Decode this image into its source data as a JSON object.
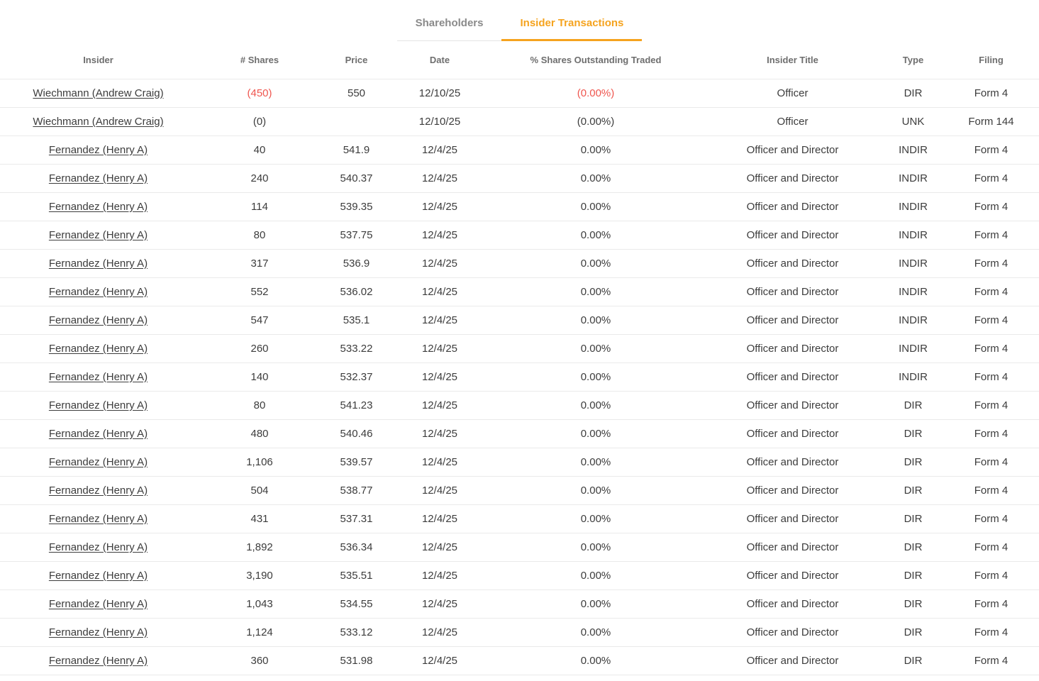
{
  "colors": {
    "accent_orange": "#F5A31E",
    "negative_red": "#EF564F"
  },
  "tabs": {
    "items": [
      {
        "label": "Shareholders",
        "active": false
      },
      {
        "label": "Insider Transactions",
        "active": true
      }
    ]
  },
  "table": {
    "columns": [
      "Insider",
      "# Shares",
      "Price",
      "Date",
      "% Shares Outstanding Traded",
      "Insider Title",
      "Type",
      "Filing"
    ],
    "rows": [
      {
        "insider": "Wiechmann (Andrew Craig)",
        "shares": "(450)",
        "price": "550",
        "date": "12/10/25",
        "pct": "(0.00%)",
        "title": "Officer",
        "type": "DIR",
        "filing": "Form 4",
        "red": true
      },
      {
        "insider": "Wiechmann (Andrew Craig)",
        "shares": "(0)",
        "price": "",
        "date": "12/10/25",
        "pct": "(0.00%)",
        "title": "Officer",
        "type": "UNK",
        "filing": "Form 144"
      },
      {
        "insider": "Fernandez (Henry A)",
        "shares": "40",
        "price": "541.9",
        "date": "12/4/25",
        "pct": "0.00%",
        "title": "Officer and Director",
        "type": "INDIR",
        "filing": "Form 4"
      },
      {
        "insider": "Fernandez (Henry A)",
        "shares": "240",
        "price": "540.37",
        "date": "12/4/25",
        "pct": "0.00%",
        "title": "Officer and Director",
        "type": "INDIR",
        "filing": "Form 4"
      },
      {
        "insider": "Fernandez (Henry A)",
        "shares": "114",
        "price": "539.35",
        "date": "12/4/25",
        "pct": "0.00%",
        "title": "Officer and Director",
        "type": "INDIR",
        "filing": "Form 4"
      },
      {
        "insider": "Fernandez (Henry A)",
        "shares": "80",
        "price": "537.75",
        "date": "12/4/25",
        "pct": "0.00%",
        "title": "Officer and Director",
        "type": "INDIR",
        "filing": "Form 4"
      },
      {
        "insider": "Fernandez (Henry A)",
        "shares": "317",
        "price": "536.9",
        "date": "12/4/25",
        "pct": "0.00%",
        "title": "Officer and Director",
        "type": "INDIR",
        "filing": "Form 4"
      },
      {
        "insider": "Fernandez (Henry A)",
        "shares": "552",
        "price": "536.02",
        "date": "12/4/25",
        "pct": "0.00%",
        "title": "Officer and Director",
        "type": "INDIR",
        "filing": "Form 4"
      },
      {
        "insider": "Fernandez (Henry A)",
        "shares": "547",
        "price": "535.1",
        "date": "12/4/25",
        "pct": "0.00%",
        "title": "Officer and Director",
        "type": "INDIR",
        "filing": "Form 4"
      },
      {
        "insider": "Fernandez (Henry A)",
        "shares": "260",
        "price": "533.22",
        "date": "12/4/25",
        "pct": "0.00%",
        "title": "Officer and Director",
        "type": "INDIR",
        "filing": "Form 4"
      },
      {
        "insider": "Fernandez (Henry A)",
        "shares": "140",
        "price": "532.37",
        "date": "12/4/25",
        "pct": "0.00%",
        "title": "Officer and Director",
        "type": "INDIR",
        "filing": "Form 4"
      },
      {
        "insider": "Fernandez (Henry A)",
        "shares": "80",
        "price": "541.23",
        "date": "12/4/25",
        "pct": "0.00%",
        "title": "Officer and Director",
        "type": "DIR",
        "filing": "Form 4"
      },
      {
        "insider": "Fernandez (Henry A)",
        "shares": "480",
        "price": "540.46",
        "date": "12/4/25",
        "pct": "0.00%",
        "title": "Officer and Director",
        "type": "DIR",
        "filing": "Form 4"
      },
      {
        "insider": "Fernandez (Henry A)",
        "shares": "1,106",
        "price": "539.57",
        "date": "12/4/25",
        "pct": "0.00%",
        "title": "Officer and Director",
        "type": "DIR",
        "filing": "Form 4"
      },
      {
        "insider": "Fernandez (Henry A)",
        "shares": "504",
        "price": "538.77",
        "date": "12/4/25",
        "pct": "0.00%",
        "title": "Officer and Director",
        "type": "DIR",
        "filing": "Form 4"
      },
      {
        "insider": "Fernandez (Henry A)",
        "shares": "431",
        "price": "537.31",
        "date": "12/4/25",
        "pct": "0.00%",
        "title": "Officer and Director",
        "type": "DIR",
        "filing": "Form 4"
      },
      {
        "insider": "Fernandez (Henry A)",
        "shares": "1,892",
        "price": "536.34",
        "date": "12/4/25",
        "pct": "0.00%",
        "title": "Officer and Director",
        "type": "DIR",
        "filing": "Form 4"
      },
      {
        "insider": "Fernandez (Henry A)",
        "shares": "3,190",
        "price": "535.51",
        "date": "12/4/25",
        "pct": "0.00%",
        "title": "Officer and Director",
        "type": "DIR",
        "filing": "Form 4"
      },
      {
        "insider": "Fernandez (Henry A)",
        "shares": "1,043",
        "price": "534.55",
        "date": "12/4/25",
        "pct": "0.00%",
        "title": "Officer and Director",
        "type": "DIR",
        "filing": "Form 4"
      },
      {
        "insider": "Fernandez (Henry A)",
        "shares": "1,124",
        "price": "533.12",
        "date": "12/4/25",
        "pct": "0.00%",
        "title": "Officer and Director",
        "type": "DIR",
        "filing": "Form 4"
      },
      {
        "insider": "Fernandez (Henry A)",
        "shares": "360",
        "price": "531.98",
        "date": "12/4/25",
        "pct": "0.00%",
        "title": "Officer and Director",
        "type": "DIR",
        "filing": "Form 4"
      }
    ]
  }
}
